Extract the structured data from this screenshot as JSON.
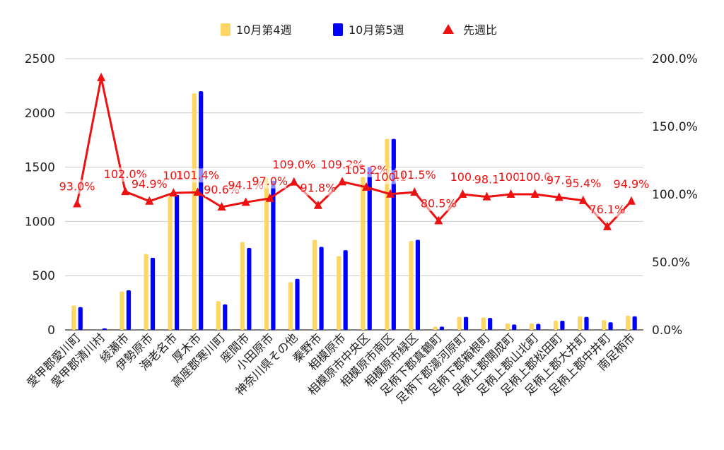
{
  "chart_data": {
    "type": "bar",
    "categories": [
      "愛甲郡愛川町",
      "愛甲郡清川村",
      "綾瀬市",
      "伊勢原市",
      "海老名市",
      "厚木市",
      "高座郡寒川町",
      "座間市",
      "小田原市",
      "神奈川県その他",
      "秦野市",
      "相模原市",
      "相模原市中央区",
      "相模原市南区",
      "相模原市緑区",
      "足柄下郡真鶴町",
      "足柄下郡湯河原町",
      "足柄下郡箱根町",
      "足柄上郡開成町",
      "足柄上郡山北町",
      "足柄上郡松田町",
      "足柄上郡大井町",
      "足柄上郡中井町",
      "南足柄市"
    ],
    "series": [
      {
        "name": "10月第4週",
        "color": "#fdd663",
        "axis": "left",
        "values": [
          225,
          0,
          355,
          700,
          1230,
          2180,
          265,
          810,
          1400,
          440,
          830,
          680,
          1410,
          1760,
          820,
          30,
          120,
          115,
          60,
          60,
          85,
          125,
          90,
          130
        ]
      },
      {
        "name": "10月第5週",
        "color": "#0000ff",
        "axis": "left",
        "values": [
          210,
          15,
          365,
          665,
          1245,
          2200,
          235,
          755,
          1375,
          470,
          765,
          735,
          1500,
          1760,
          830,
          30,
          120,
          110,
          50,
          55,
          85,
          120,
          70,
          125
        ]
      },
      {
        "name": "先週比",
        "color": "#ee1111",
        "axis": "right",
        "type": "line",
        "marker": "triangle",
        "values": [
          93.0,
          186.0,
          102.0,
          94.9,
          101.0,
          101.4,
          90.6,
          94.1,
          97.0,
          109.0,
          91.8,
          109.2,
          105.2,
          100.1,
          101.5,
          80.5,
          100.0,
          98.1,
          100.0,
          100.0,
          97.7,
          95.4,
          76.1,
          94.9
        ],
        "labels": [
          "93.0%",
          "",
          "102.0%",
          "94.9%",
          "101",
          "101.4%",
          "90.6%",
          "94.1%",
          "97.0%",
          "109.0%",
          "91.8%",
          "109.2%",
          "105.2%",
          "100.1",
          "101.5%",
          "80.5%",
          "100.",
          "98.1",
          "100.",
          "100.0",
          "97.7",
          "95.4%",
          "76.1%",
          "94.9%"
        ]
      }
    ],
    "y_left": {
      "min": 0,
      "max": 2500,
      "ticks": [
        0,
        500,
        1000,
        1500,
        2000,
        2500
      ]
    },
    "y_right": {
      "min": 0,
      "max": 200,
      "ticks": [
        "0.0%",
        "50.0%",
        "100.0%",
        "150.0%",
        "200.0%"
      ]
    },
    "legend_position": "top",
    "grid": true
  }
}
